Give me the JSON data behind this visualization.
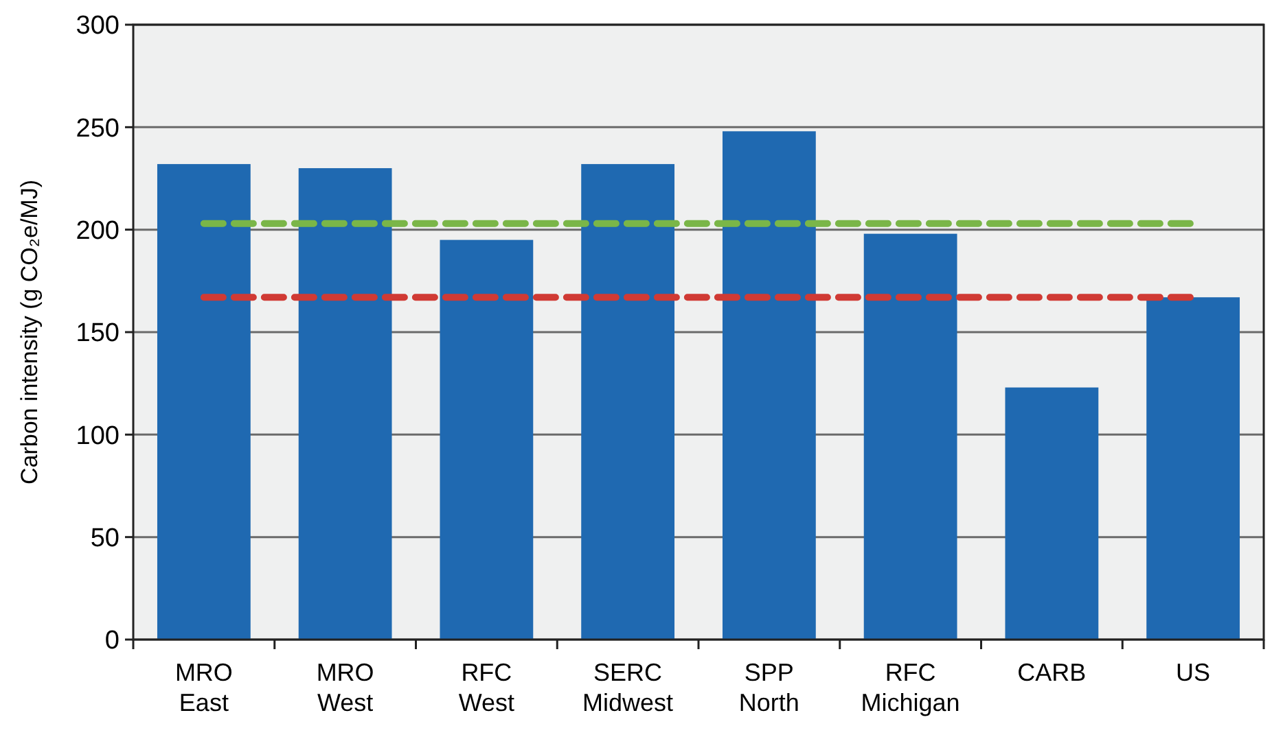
{
  "chart_data": {
    "type": "bar",
    "ylabel": "Carbon intensity (g CO₂e/MJ)",
    "categories": [
      "MRO East",
      "MRO West",
      "RFC West",
      "SERC Midwest",
      "SPP North",
      "RFC Michigan",
      "CARB",
      "US"
    ],
    "values": [
      232,
      230,
      195,
      232,
      248,
      198,
      123,
      167
    ],
    "color": "#1f69b1",
    "ylim": [
      0,
      300
    ],
    "yticks": [
      0,
      50,
      100,
      150,
      200,
      250,
      300
    ],
    "grid": "y",
    "ref_lines": [
      {
        "axis": "y",
        "value": 203,
        "color": "#7ab648",
        "line_style": "dashed"
      },
      {
        "axis": "y",
        "value": 167,
        "color": "#d03a34",
        "line_style": "dashed"
      }
    ]
  }
}
